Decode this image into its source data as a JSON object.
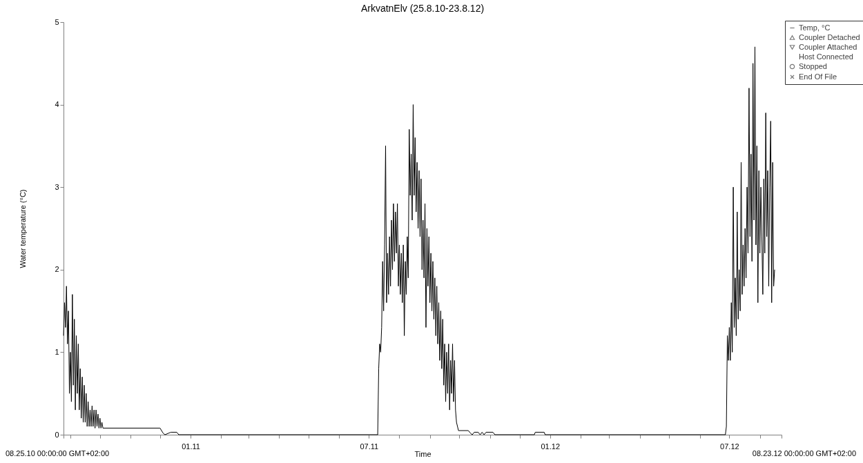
{
  "chart_data": {
    "type": "line",
    "title": "ArkvatnElv (25.8.10-23.8.12)",
    "xlabel": "Time",
    "ylabel": "Water temperature (°C)",
    "xlim": [
      "2010-08-25",
      "2012-08-23"
    ],
    "annotations": [
      "08.25.10 00:00:00 GMT+02:00",
      "08.23.12 00:00:00 GMT+02:00"
    ],
    "xticks": [
      {
        "value": "2010-08-25",
        "label": null
      },
      {
        "value": "2010-09-01",
        "label": null
      },
      {
        "value": "2010-10-01",
        "label": null
      },
      {
        "value": "2010-11-01",
        "label": null
      },
      {
        "value": "2010-12-01",
        "label": null
      },
      {
        "value": "2011-01-01",
        "label": "01.11"
      },
      {
        "value": "2011-02-01",
        "label": null
      },
      {
        "value": "2011-03-01",
        "label": null
      },
      {
        "value": "2011-04-01",
        "label": null
      },
      {
        "value": "2011-05-01",
        "label": null
      },
      {
        "value": "2011-06-01",
        "label": null
      },
      {
        "value": "2011-07-01",
        "label": "07.11"
      },
      {
        "value": "2011-08-01",
        "label": null
      },
      {
        "value": "2011-09-01",
        "label": null
      },
      {
        "value": "2011-10-01",
        "label": null
      },
      {
        "value": "2011-11-01",
        "label": null
      },
      {
        "value": "2011-12-01",
        "label": null
      },
      {
        "value": "2012-01-01",
        "label": "01.12"
      },
      {
        "value": "2012-02-01",
        "label": null
      },
      {
        "value": "2012-03-01",
        "label": null
      },
      {
        "value": "2012-04-01",
        "label": null
      },
      {
        "value": "2012-05-01",
        "label": null
      },
      {
        "value": "2012-06-01",
        "label": null
      },
      {
        "value": "2012-07-01",
        "label": "07.12"
      },
      {
        "value": "2012-08-01",
        "label": null
      },
      {
        "value": "2012-08-23",
        "label": null
      }
    ],
    "ylim": [
      0,
      5
    ],
    "yticks": [
      0,
      1,
      2,
      3,
      4,
      5
    ],
    "legend": "top right",
    "series": [
      {
        "name": "Temp, °C",
        "type": "line",
        "color": "#000000",
        "x": [
          "2010-08-25",
          "2010-08-26",
          "2010-08-27",
          "2010-08-28",
          "2010-08-29",
          "2010-08-30",
          "2010-08-31",
          "2010-09-01",
          "2010-09-02",
          "2010-09-03",
          "2010-09-04",
          "2010-09-05",
          "2010-09-06",
          "2010-09-07",
          "2010-09-08",
          "2010-09-09",
          "2010-09-10",
          "2010-09-11",
          "2010-09-12",
          "2010-09-13",
          "2010-09-14",
          "2010-09-15",
          "2010-09-16",
          "2010-09-17",
          "2010-09-18",
          "2010-09-19",
          "2010-09-20",
          "2010-09-21",
          "2010-09-22",
          "2010-09-23",
          "2010-09-24",
          "2010-09-25",
          "2010-09-26",
          "2010-09-27",
          "2010-09-28",
          "2010-09-29",
          "2010-09-30",
          "2010-10-01",
          "2010-10-02",
          "2010-10-03",
          "2010-10-04",
          "2010-12-01",
          "2010-12-04",
          "2010-12-06",
          "2010-12-12",
          "2010-12-18",
          "2010-12-20",
          "2011-07-10",
          "2011-07-11",
          "2011-07-12",
          "2011-07-13",
          "2011-07-14",
          "2011-07-15",
          "2011-07-16",
          "2011-07-17",
          "2011-07-18",
          "2011-07-19",
          "2011-07-20",
          "2011-07-21",
          "2011-07-22",
          "2011-07-23",
          "2011-07-24",
          "2011-07-25",
          "2011-07-26",
          "2011-07-27",
          "2011-07-28",
          "2011-07-29",
          "2011-07-30",
          "2011-07-31",
          "2011-08-01",
          "2011-08-02",
          "2011-08-03",
          "2011-08-04",
          "2011-08-05",
          "2011-08-06",
          "2011-08-07",
          "2011-08-08",
          "2011-08-09",
          "2011-08-10",
          "2011-08-11",
          "2011-08-12",
          "2011-08-13",
          "2011-08-14",
          "2011-08-15",
          "2011-08-16",
          "2011-08-17",
          "2011-08-18",
          "2011-08-19",
          "2011-08-20",
          "2011-08-21",
          "2011-08-22",
          "2011-08-23",
          "2011-08-24",
          "2011-08-25",
          "2011-08-26",
          "2011-08-27",
          "2011-08-28",
          "2011-08-29",
          "2011-08-30",
          "2011-08-31",
          "2011-09-01",
          "2011-09-02",
          "2011-09-03",
          "2011-09-04",
          "2011-09-05",
          "2011-09-06",
          "2011-09-07",
          "2011-09-08",
          "2011-09-09",
          "2011-09-10",
          "2011-09-11",
          "2011-09-12",
          "2011-09-13",
          "2011-09-14",
          "2011-09-15",
          "2011-09-16",
          "2011-09-17",
          "2011-09-18",
          "2011-09-19",
          "2011-09-20",
          "2011-09-21",
          "2011-09-22",
          "2011-09-23",
          "2011-09-24",
          "2011-09-25",
          "2011-09-26",
          "2011-09-27",
          "2011-09-28",
          "2011-09-29",
          "2011-09-30",
          "2011-10-10",
          "2011-10-12",
          "2011-10-14",
          "2011-10-16",
          "2011-10-20",
          "2011-10-22",
          "2011-10-24",
          "2011-10-26",
          "2011-10-28",
          "2011-11-04",
          "2011-11-06",
          "2011-12-16",
          "2011-12-17",
          "2011-12-26",
          "2011-12-27",
          "2012-06-27",
          "2012-06-28",
          "2012-06-29",
          "2012-06-30",
          "2012-07-01",
          "2012-07-02",
          "2012-07-03",
          "2012-07-04",
          "2012-07-05",
          "2012-07-06",
          "2012-07-07",
          "2012-07-08",
          "2012-07-09",
          "2012-07-10",
          "2012-07-11",
          "2012-07-12",
          "2012-07-13",
          "2012-07-14",
          "2012-07-15",
          "2012-07-16",
          "2012-07-17",
          "2012-07-18",
          "2012-07-19",
          "2012-07-20",
          "2012-07-21",
          "2012-07-22",
          "2012-07-23",
          "2012-07-24",
          "2012-07-25",
          "2012-07-26",
          "2012-07-27",
          "2012-07-28",
          "2012-07-29",
          "2012-07-30",
          "2012-07-31",
          "2012-08-01",
          "2012-08-02",
          "2012-08-03",
          "2012-08-04",
          "2012-08-05",
          "2012-08-06",
          "2012-08-07",
          "2012-08-08",
          "2012-08-09",
          "2012-08-10",
          "2012-08-11",
          "2012-08-12",
          "2012-08-13",
          "2012-08-14",
          "2012-08-15",
          "2012-08-16"
        ],
        "values": [
          1.2,
          1.6,
          1.3,
          1.8,
          1.1,
          1.5,
          0.5,
          1.0,
          0.4,
          1.7,
          0.6,
          1.4,
          0.3,
          1.2,
          0.5,
          1.1,
          0.3,
          0.8,
          0.2,
          0.7,
          0.15,
          0.6,
          0.15,
          0.5,
          0.1,
          0.4,
          0.1,
          0.3,
          0.1,
          0.35,
          0.1,
          0.3,
          0.08,
          0.3,
          0.1,
          0.25,
          0.08,
          0.2,
          0.08,
          0.15,
          0.08,
          0.08,
          0.02,
          0,
          0.03,
          0.03,
          0,
          0,
          0.8,
          1.1,
          1.0,
          1.3,
          2.1,
          1.5,
          2.3,
          3.5,
          1.6,
          2.2,
          1.7,
          2.4,
          1.8,
          2.6,
          2.0,
          2.8,
          2.1,
          2.7,
          2.2,
          2.8,
          1.8,
          2.3,
          1.7,
          2.2,
          1.6,
          2.3,
          1.2,
          2.1,
          1.7,
          2.4,
          1.9,
          3.7,
          2.9,
          3.4,
          2.6,
          4.0,
          2.9,
          3.6,
          2.7,
          3.3,
          2.5,
          3.2,
          2.4,
          3.1,
          2.0,
          2.6,
          1.9,
          2.8,
          1.3,
          2.5,
          1.8,
          2.4,
          1.6,
          2.2,
          1.5,
          2.1,
          1.4,
          1.9,
          1.2,
          1.8,
          1.1,
          1.6,
          0.9,
          1.5,
          0.8,
          1.4,
          0.6,
          1.1,
          0.4,
          1.0,
          0.5,
          1.1,
          0.3,
          0.9,
          0.5,
          1.1,
          0.4,
          0.9,
          0.3,
          0.15,
          0.1,
          0.05,
          0.05,
          0.02,
          0,
          0.03,
          0.03,
          0,
          0.03,
          0,
          0.03,
          0.03,
          0,
          0,
          0.03,
          0.03,
          0,
          0,
          0.1,
          1.2,
          0.9,
          1.3,
          0.9,
          1.6,
          1.0,
          3.0,
          1.3,
          1.9,
          1.2,
          2.7,
          1.4,
          2.0,
          1.5,
          3.3,
          1.7,
          2.3,
          1.8,
          2.5,
          1.9,
          3.0,
          2.2,
          4.2,
          2.4,
          3.4,
          2.1,
          4.5,
          2.6,
          4.7,
          2.3,
          3.5,
          1.6,
          3.2,
          2.2,
          3.0,
          2.4,
          1.7,
          3.1,
          2.2,
          3.9,
          2.4,
          3.2,
          1.8,
          3.0,
          3.8,
          1.6,
          3.3,
          1.8,
          2.0
        ]
      },
      {
        "name": "Coupler Detached",
        "type": "scatter",
        "marker": "triangle",
        "color": "#404040"
      },
      {
        "name": "Coupler Attached",
        "type": "scatter",
        "marker": "triangle-down",
        "color": "#404040"
      },
      {
        "name": "Host Connected",
        "type": "scatter",
        "marker": "none",
        "color": "#404040"
      },
      {
        "name": "Stopped",
        "type": "scatter",
        "marker": "circle",
        "color": "#404040"
      },
      {
        "name": "End Of File",
        "type": "scatter",
        "marker": "cross",
        "color": "#404040"
      }
    ]
  }
}
